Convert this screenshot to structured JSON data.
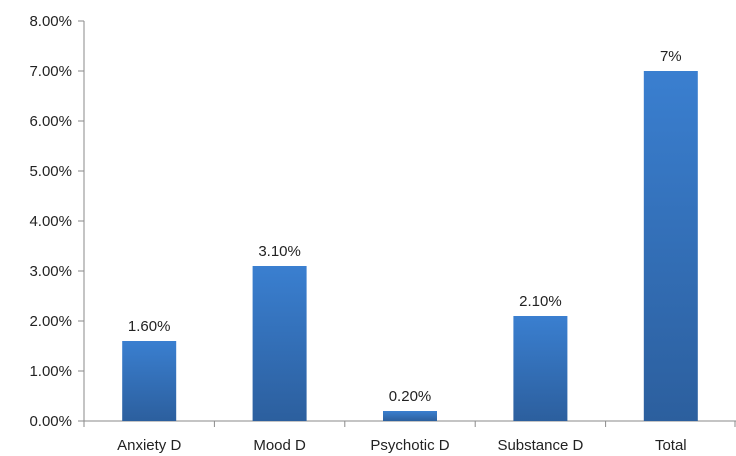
{
  "chart_data": {
    "type": "bar",
    "categories": [
      "Anxiety D",
      "Mood D",
      "Psychotic D",
      "Substance D",
      "Total"
    ],
    "values": [
      1.6,
      3.1,
      0.2,
      2.1,
      7.0
    ],
    "data_labels": [
      "1.60%",
      "3.10%",
      "0.20%",
      "2.10%",
      "7%"
    ],
    "title": "",
    "xlabel": "",
    "ylabel": "",
    "ylim": [
      0,
      8
    ],
    "y_ticks": [
      0,
      1,
      2,
      3,
      4,
      5,
      6,
      7,
      8
    ],
    "y_tick_labels": [
      "0.00%",
      "1.00%",
      "2.00%",
      "3.00%",
      "4.00%",
      "5.00%",
      "6.00%",
      "7.00%",
      "8.00%"
    ],
    "grid": false,
    "legend": "none",
    "bar_color_top": "#3a7fd0",
    "bar_color_bottom": "#2c5f9e",
    "axis_color": "#8a8a8a"
  }
}
